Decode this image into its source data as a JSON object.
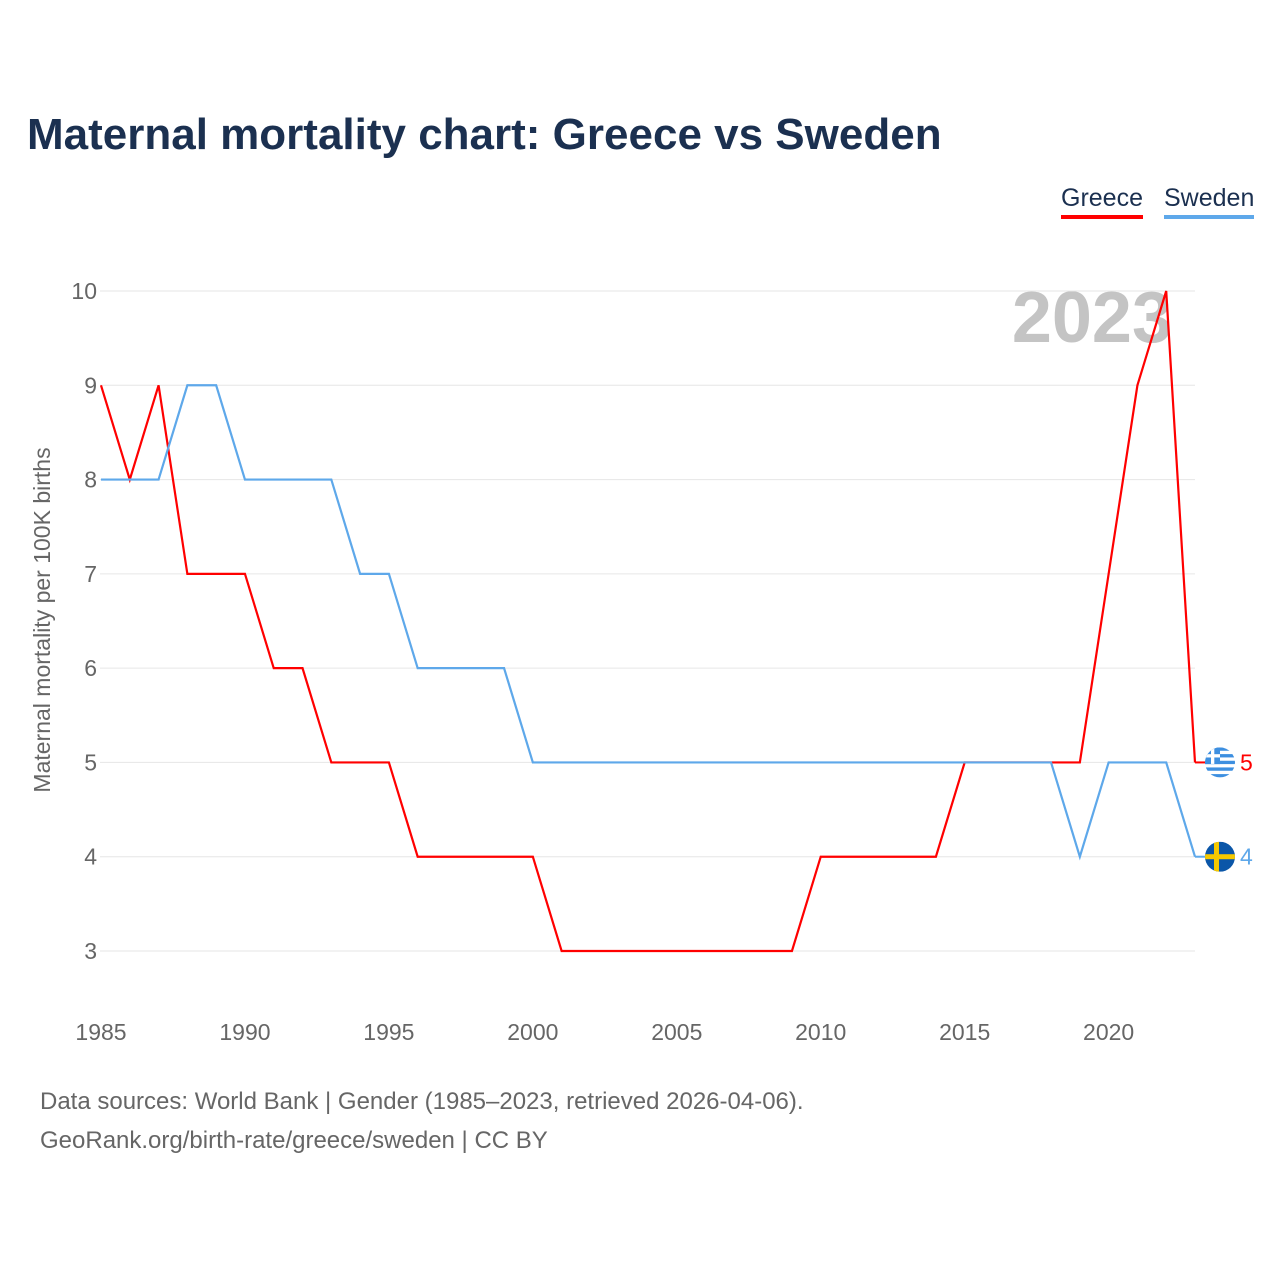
{
  "title": "Maternal mortality chart: Greece vs Sweden",
  "sources": {
    "line1": "Data sources: World Bank | Gender (1985–2023, retrieved 2026-04-06).",
    "line2": "GeoRank.org/birth-rate/greece/sweden | CC BY"
  },
  "chart_data": {
    "type": "line",
    "title": "Maternal mortality chart: Greece vs Sweden",
    "xlabel": "",
    "ylabel": "Maternal mortality per 100K births",
    "watermark_year": "2023",
    "xlim": [
      1985,
      2023
    ],
    "ylim": [
      3,
      10
    ],
    "x_ticks": [
      "1985",
      "1990",
      "1995",
      "2000",
      "2005",
      "2010",
      "2015",
      "2020"
    ],
    "y_ticks": [
      "3",
      "4",
      "5",
      "6",
      "7",
      "8",
      "9",
      "10"
    ],
    "grid": true,
    "legend_placement": "top-right",
    "x": [
      1985,
      1986,
      1987,
      1988,
      1989,
      1990,
      1991,
      1992,
      1993,
      1994,
      1995,
      1996,
      1997,
      1998,
      1999,
      2000,
      2001,
      2002,
      2003,
      2004,
      2005,
      2006,
      2007,
      2008,
      2009,
      2010,
      2011,
      2012,
      2013,
      2014,
      2015,
      2016,
      2017,
      2018,
      2019,
      2020,
      2021,
      2022,
      2023
    ],
    "series": [
      {
        "name": "Greece",
        "color": "#ff0000",
        "end_label": "5",
        "values": [
          9,
          8,
          9,
          7,
          7,
          7,
          6,
          6,
          5,
          5,
          5,
          4,
          4,
          4,
          4,
          4,
          3,
          3,
          3,
          3,
          3,
          3,
          3,
          3,
          3,
          4,
          4,
          4,
          4,
          4,
          5,
          5,
          5,
          5,
          5,
          7,
          9,
          10,
          5
        ]
      },
      {
        "name": "Sweden",
        "color": "#5ea8ea",
        "end_label": "4",
        "values": [
          8,
          8,
          8,
          9,
          9,
          8,
          8,
          8,
          8,
          7,
          7,
          6,
          6,
          6,
          6,
          5,
          5,
          5,
          5,
          5,
          5,
          5,
          5,
          5,
          5,
          5,
          5,
          5,
          5,
          5,
          5,
          5,
          5,
          5,
          4,
          5,
          5,
          5,
          4
        ]
      }
    ]
  }
}
